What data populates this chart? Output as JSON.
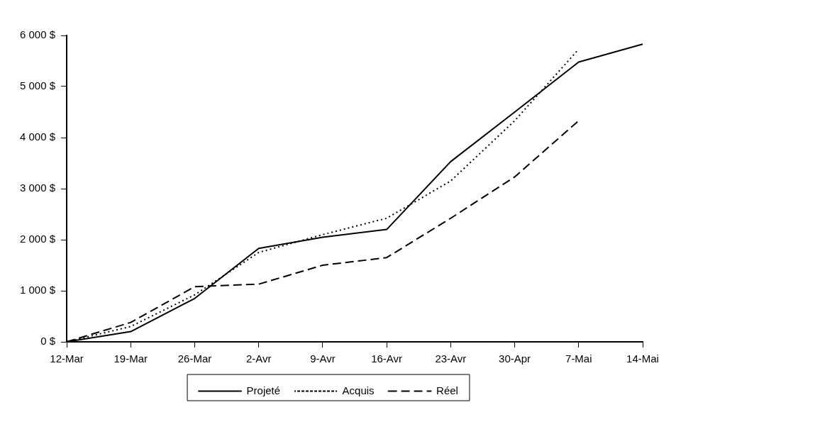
{
  "chart_data": {
    "type": "line",
    "categories": [
      "12-Mar",
      "19-Mar",
      "26-Mar",
      "2-Avr",
      "9-Avr",
      "16-Avr",
      "23-Avr",
      "30-Apr",
      "7-Mai",
      "14-Mai"
    ],
    "series": [
      {
        "name": "Projeté",
        "color": "#000000",
        "line_style": "solid",
        "values": [
          0,
          200,
          850,
          1830,
          2050,
          2200,
          3530,
          4500,
          5480,
          5830
        ]
      },
      {
        "name": "Acquis",
        "color": "#000000",
        "line_style": "dotted",
        "values": [
          0,
          300,
          920,
          1750,
          2100,
          2420,
          3150,
          4330,
          5730,
          null
        ]
      },
      {
        "name": "Réel",
        "color": "#000000",
        "line_style": "dashed",
        "values": [
          0,
          380,
          1080,
          1130,
          1500,
          1650,
          2420,
          3230,
          4330,
          null
        ]
      }
    ],
    "ylim": [
      0,
      6000
    ],
    "yticks": [
      {
        "value": 0,
        "label": "0 $"
      },
      {
        "value": 1000,
        "label": "1 000 $"
      },
      {
        "value": 2000,
        "label": "2 000 $"
      },
      {
        "value": 3000,
        "label": "3 000 $"
      },
      {
        "value": 4000,
        "label": "4 000 $"
      },
      {
        "value": 5000,
        "label": "5 000 $"
      },
      {
        "value": 6000,
        "label": "6 000 $"
      }
    ],
    "grid": false,
    "legend": "bottom",
    "marker": "none"
  }
}
